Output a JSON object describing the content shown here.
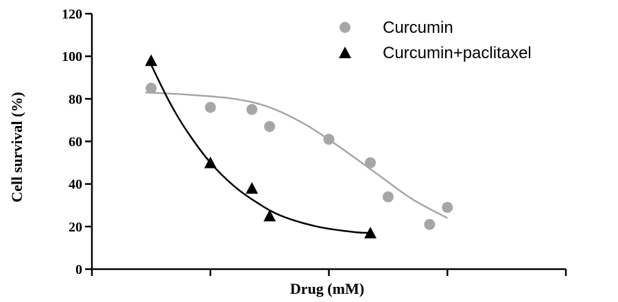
{
  "chart_data": {
    "type": "scatter",
    "title": "",
    "xlabel": "Drug (mM)",
    "ylabel": "Cell survival (%)",
    "ylim": [
      0,
      120
    ],
    "yticks": [
      0,
      20,
      40,
      60,
      80,
      100,
      120
    ],
    "xlim": [
      0,
      4
    ],
    "xticks": [
      0,
      1,
      2,
      3,
      4
    ],
    "xticks_labeled": false,
    "grid": false,
    "legend": "top-right",
    "series": [
      {
        "name": "Curcumin",
        "marker": "circle",
        "color": "#a6a6a6",
        "points": [
          {
            "x": 0.5,
            "y": 85
          },
          {
            "x": 1.0,
            "y": 76
          },
          {
            "x": 1.35,
            "y": 75
          },
          {
            "x": 1.5,
            "y": 67
          },
          {
            "x": 2.0,
            "y": 61
          },
          {
            "x": 2.35,
            "y": 50
          },
          {
            "x": 2.5,
            "y": 34
          },
          {
            "x": 2.85,
            "y": 21
          },
          {
            "x": 3.0,
            "y": 29
          }
        ],
        "fit": [
          {
            "x": 0.45,
            "y": 83
          },
          {
            "x": 0.8,
            "y": 82
          },
          {
            "x": 1.2,
            "y": 80
          },
          {
            "x": 1.5,
            "y": 76
          },
          {
            "x": 1.8,
            "y": 68
          },
          {
            "x": 2.1,
            "y": 57
          },
          {
            "x": 2.4,
            "y": 45
          },
          {
            "x": 2.7,
            "y": 33
          },
          {
            "x": 3.0,
            "y": 24
          }
        ]
      },
      {
        "name": "Curcumin+paclitaxel",
        "marker": "triangle",
        "color": "#000000",
        "points": [
          {
            "x": 0.5,
            "y": 98
          },
          {
            "x": 1.0,
            "y": 50
          },
          {
            "x": 1.35,
            "y": 38
          },
          {
            "x": 1.5,
            "y": 25
          },
          {
            "x": 2.35,
            "y": 17
          }
        ],
        "fit": [
          {
            "x": 0.5,
            "y": 96
          },
          {
            "x": 0.65,
            "y": 79
          },
          {
            "x": 0.8,
            "y": 65
          },
          {
            "x": 1.0,
            "y": 50
          },
          {
            "x": 1.2,
            "y": 39
          },
          {
            "x": 1.4,
            "y": 31
          },
          {
            "x": 1.6,
            "y": 25
          },
          {
            "x": 1.9,
            "y": 20
          },
          {
            "x": 2.2,
            "y": 17.5
          },
          {
            "x": 2.35,
            "y": 17
          }
        ]
      }
    ]
  }
}
